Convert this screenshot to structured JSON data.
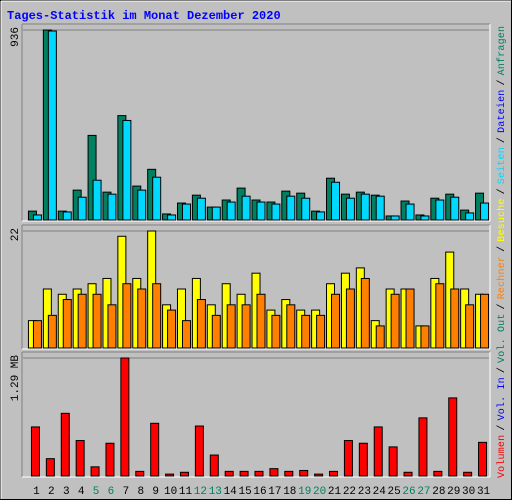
{
  "chart_data": [
    {
      "type": "bar",
      "title": "Tages-Statistik im Monat Dezember 2020",
      "ylim": [
        0,
        936
      ],
      "yticks": [
        936
      ],
      "series": [
        {
          "name": "Anfragen",
          "color": "#008060",
          "values": [
            39,
            936,
            39,
            143,
            414,
            133,
            512,
            163,
            246,
            25,
            79,
            118,
            59,
            94,
            153,
            94,
            84,
            138,
            128,
            39,
            202,
            123,
            133,
            118,
            15,
            89,
            20,
            103,
            123,
            44,
            128
          ]
        },
        {
          "name": "Dateien",
          "color": "#0000ff"
        },
        {
          "name": "Seiten",
          "color": "#00d8ff",
          "values": [
            20,
            931,
            35,
            108,
            192,
            123,
            488,
            143,
            207,
            20,
            74,
            103,
            59,
            84,
            113,
            84,
            74,
            113,
            103,
            35,
            182,
            103,
            123,
            113,
            15,
            74,
            15,
            94,
            108,
            30,
            79
          ]
        }
      ]
    },
    {
      "type": "bar",
      "ylim": [
        0,
        22
      ],
      "yticks": [
        22
      ],
      "series": [
        {
          "name": "Besuche",
          "color": "#ffff00",
          "values": [
            5,
            11,
            10,
            11,
            12,
            13,
            21,
            13,
            22,
            8,
            11,
            13,
            8,
            12,
            10,
            14,
            7,
            9,
            7,
            7,
            12,
            14,
            15,
            5,
            11,
            11,
            4,
            13,
            18,
            11,
            10
          ]
        },
        {
          "name": "Rechner",
          "color": "#ff8000",
          "values": [
            5,
            6,
            9,
            10,
            10,
            8,
            12,
            11,
            12,
            7,
            5,
            9,
            6,
            8,
            8,
            10,
            6,
            8,
            6,
            6,
            10,
            11,
            13,
            4,
            10,
            11,
            4,
            12,
            11,
            8,
            10
          ]
        }
      ]
    },
    {
      "type": "bar",
      "ylim": [
        0,
        1.29
      ],
      "yticks": [
        {
          "value": 1.29,
          "label": "1.29 MB"
        }
      ],
      "categories": [
        "1",
        "2",
        "3",
        "4",
        "5",
        "6",
        "7",
        "8",
        "9",
        "10",
        "11",
        "12",
        "13",
        "14",
        "15",
        "16",
        "17",
        "18",
        "19",
        "20",
        "21",
        "22",
        "23",
        "24",
        "25",
        "26",
        "27",
        "28",
        "29",
        "30",
        "31"
      ],
      "label_colors": [
        "#000000",
        "#000000",
        "#000000",
        "#000000",
        "#008060",
        "#008060",
        "#000000",
        "#000000",
        "#000000",
        "#000000",
        "#000000",
        "#008060",
        "#008060",
        "#000000",
        "#000000",
        "#000000",
        "#000000",
        "#000000",
        "#008060",
        "#008060",
        "#000000",
        "#000000",
        "#000000",
        "#000000",
        "#000000",
        "#008060",
        "#008060",
        "#000000",
        "#000000",
        "#000000",
        "#000000"
      ],
      "series": [
        {
          "name": "Volumen",
          "color": "#ff0000",
          "values": [
            0.53,
            0.18,
            0.68,
            0.38,
            0.09,
            0.35,
            1.29,
            0.04,
            0.57,
            0.01,
            0.03,
            0.54,
            0.22,
            0.04,
            0.04,
            0.04,
            0.07,
            0.04,
            0.05,
            0.01,
            0.04,
            0.38,
            0.35,
            0.53,
            0.31,
            0.03,
            0.63,
            0.04,
            0.85,
            0.03,
            0.36
          ]
        },
        {
          "name": "Vol. In",
          "color": "#0000ff"
        },
        {
          "name": "Vol. Out",
          "color": "#008060"
        }
      ]
    }
  ],
  "legend_separator": "/"
}
